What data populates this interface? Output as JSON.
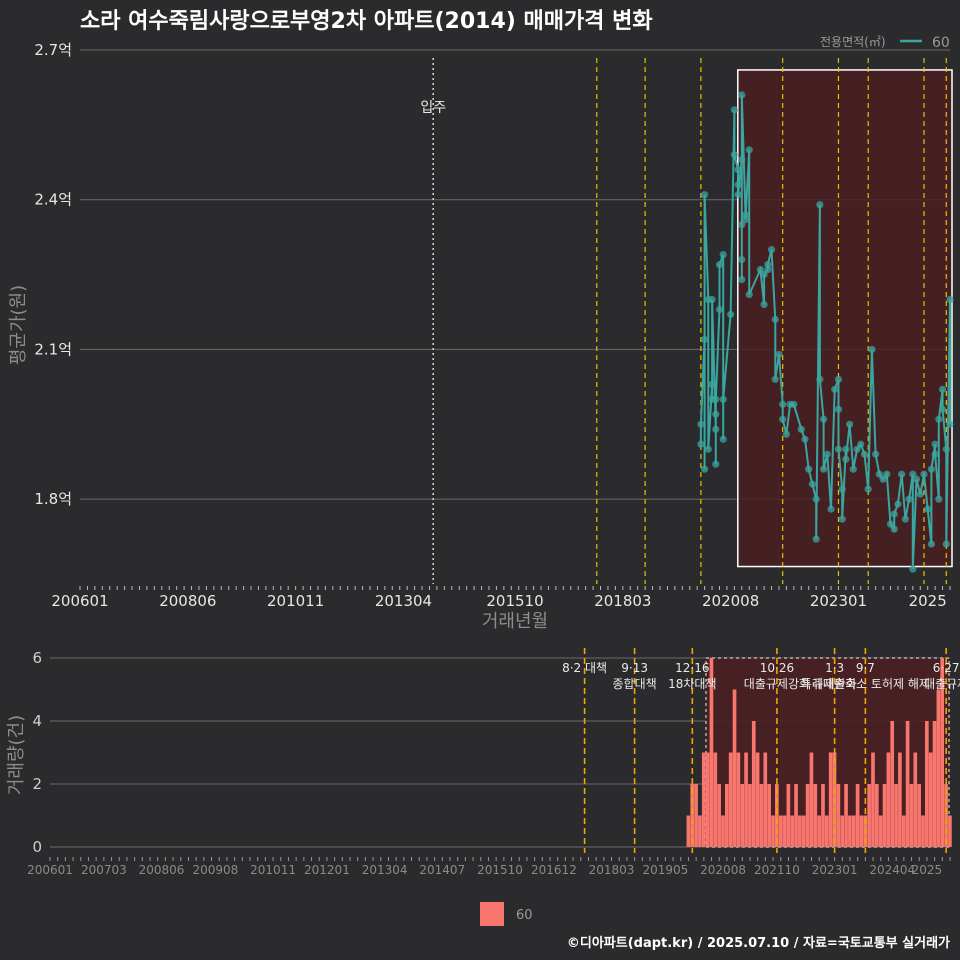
{
  "title": "소라 여수죽림사랑으로부영2차 아파트(2014) 매매가격 변화",
  "footer": "©디아파트(dapt.kr) / 2025.07.10 / 자료=국토교통부 실거래가",
  "colors": {
    "background": "#2b2b2d",
    "line": "#3aa6a0",
    "bar": "#f8766d",
    "highlight_fill": "#4a1f22",
    "policy_line": "#e6c200",
    "grid": "#6b6b6b"
  },
  "chart_data": [
    {
      "type": "line",
      "title": "평균가(원) 추이",
      "xlabel": "거래년월",
      "ylabel": "평균가(원)",
      "ylim": [
        1.63,
        2.72
      ],
      "y_ticks": [
        1.8,
        2.1,
        2.4,
        2.7
      ],
      "y_tick_labels": [
        "1.8억",
        "2.1억",
        "2.4억",
        "2.7억"
      ],
      "x_range": [
        "200601",
        "202507"
      ],
      "x_ticks": [
        "200601",
        "200806",
        "201011",
        "201304",
        "201510",
        "201803",
        "202008",
        "202301",
        "2025"
      ],
      "legend": {
        "title": "전용면적(㎡)",
        "label": "60",
        "position": "top-right"
      },
      "annotation": {
        "label": "입주",
        "x": "201312"
      },
      "policy_lines": [
        "201708",
        "201809",
        "201912",
        "202110",
        "202301",
        "202309",
        "202412",
        "202506"
      ],
      "highlight_range": [
        "202011",
        "202507"
      ],
      "series": [
        {
          "name": "60",
          "points": [
            [
              "201912",
              1.91
            ],
            [
              "201912",
              1.95
            ],
            [
              "202001",
              2.12
            ],
            [
              "202001",
              1.86
            ],
            [
              "202001",
              2.41
            ],
            [
              "202002",
              2.2
            ],
            [
              "202002",
              1.9
            ],
            [
              "202003",
              2.03
            ],
            [
              "202003",
              2.0
            ],
            [
              "202003",
              2.2
            ],
            [
              "202004",
              1.94
            ],
            [
              "202004",
              1.87
            ],
            [
              "202004",
              1.97
            ],
            [
              "202004",
              2.0
            ],
            [
              "202005",
              2.18
            ],
            [
              "202005",
              2.27
            ],
            [
              "202006",
              2.29
            ],
            [
              "202006",
              1.92
            ],
            [
              "202006",
              2.0
            ],
            [
              "202008",
              2.17
            ],
            [
              "202009",
              2.58
            ],
            [
              "202009",
              2.49
            ],
            [
              "202010",
              2.46
            ],
            [
              "202010",
              2.43
            ],
            [
              "202010",
              2.41
            ],
            [
              "202011",
              2.48
            ],
            [
              "202011",
              2.35
            ],
            [
              "202011",
              2.28
            ],
            [
              "202011",
              2.24
            ],
            [
              "202011",
              2.61
            ],
            [
              "202012",
              2.37
            ],
            [
              "202012",
              2.36
            ],
            [
              "202101",
              2.5
            ],
            [
              "202101",
              2.21
            ],
            [
              "202104",
              2.26
            ],
            [
              "202105",
              2.19
            ],
            [
              "202105",
              2.25
            ],
            [
              "202106",
              2.26
            ],
            [
              "202106",
              2.27
            ],
            [
              "202107",
              2.3
            ],
            [
              "202108",
              2.16
            ],
            [
              "202108",
              2.04
            ],
            [
              "202109",
              2.09
            ],
            [
              "202110",
              1.99
            ],
            [
              "202110",
              1.96
            ],
            [
              "202111",
              1.93
            ],
            [
              "202112",
              1.99
            ],
            [
              "202201",
              1.99
            ],
            [
              "202203",
              1.94
            ],
            [
              "202204",
              1.92
            ],
            [
              "202205",
              1.86
            ],
            [
              "202206",
              1.83
            ],
            [
              "202207",
              1.8
            ],
            [
              "202207",
              1.72
            ],
            [
              "202208",
              2.39
            ],
            [
              "202208",
              2.04
            ],
            [
              "202209",
              1.96
            ],
            [
              "202209",
              1.86
            ],
            [
              "202210",
              1.89
            ],
            [
              "202211",
              1.78
            ],
            [
              "202212",
              2.02
            ],
            [
              "202301",
              2.04
            ],
            [
              "202301",
              1.98
            ],
            [
              "202301",
              1.9
            ],
            [
              "202302",
              1.82
            ],
            [
              "202302",
              1.76
            ],
            [
              "202303",
              1.9
            ],
            [
              "202303",
              1.88
            ],
            [
              "202304",
              1.95
            ],
            [
              "202305",
              1.86
            ],
            [
              "202306",
              1.9
            ],
            [
              "202307",
              1.91
            ],
            [
              "202308",
              1.89
            ],
            [
              "202309",
              1.82
            ],
            [
              "202310",
              2.1
            ],
            [
              "202311",
              1.89
            ],
            [
              "202312",
              1.85
            ],
            [
              "202401",
              1.84
            ],
            [
              "202402",
              1.85
            ],
            [
              "202403",
              1.75
            ],
            [
              "202404",
              1.74
            ],
            [
              "202404",
              1.77
            ],
            [
              "202405",
              1.79
            ],
            [
              "202406",
              1.85
            ],
            [
              "202407",
              1.76
            ],
            [
              "202408",
              1.8
            ],
            [
              "202409",
              1.85
            ],
            [
              "202409",
              1.66
            ],
            [
              "202410",
              1.84
            ],
            [
              "202411",
              1.81
            ],
            [
              "202412",
              1.85
            ],
            [
              "202501",
              1.78
            ],
            [
              "202502",
              1.71
            ],
            [
              "202502",
              1.86
            ],
            [
              "202503",
              1.91
            ],
            [
              "202503",
              1.89
            ],
            [
              "202504",
              1.8
            ],
            [
              "202504",
              1.96
            ],
            [
              "202505",
              2.02
            ],
            [
              "202505",
              1.98
            ],
            [
              "202506",
              1.9
            ],
            [
              "202506",
              1.71
            ],
            [
              "202507",
              2.2
            ],
            [
              "202507",
              1.95
            ]
          ]
        }
      ]
    },
    {
      "type": "bar",
      "title": "거래량(건) 추이",
      "xlabel": "",
      "ylabel": "거래량(건)",
      "ylim": [
        0,
        6
      ],
      "y_ticks": [
        0,
        2,
        4,
        6
      ],
      "x_range": [
        "200601",
        "202507"
      ],
      "x_ticks": [
        "200601",
        "200703",
        "200806",
        "200908",
        "201011",
        "201201",
        "201304",
        "201407",
        "201510",
        "201612",
        "201803",
        "201905",
        "202008",
        "202110",
        "202301",
        "202404",
        "2025"
      ],
      "legend": {
        "label": "60",
        "position": "bottom"
      },
      "highlight_range": [
        "202002",
        "202507"
      ],
      "policy_events": [
        {
          "x": "201708",
          "labels": [
            "8·2 대책"
          ]
        },
        {
          "x": "201809",
          "labels": [
            "9·13",
            "종합대책"
          ]
        },
        {
          "x": "201912",
          "labels": [
            "12·16",
            "18차대책"
          ]
        },
        {
          "x": "202110",
          "labels": [
            "10·26",
            "대출규제강화"
          ]
        },
        {
          "x": "202301",
          "labels": [
            "1·3",
            "규제완화"
          ]
        },
        {
          "x": "202309",
          "labels": [
            "9·7",
            "특례대출축소 토허제 해제"
          ]
        },
        {
          "x": "202506",
          "labels": [
            "6·27",
            "대출규제"
          ]
        }
      ],
      "series": [
        {
          "name": "60",
          "points": [
            [
              "201911",
              1
            ],
            [
              "201912",
              2
            ],
            [
              "202001",
              2
            ],
            [
              "202002",
              1
            ],
            [
              "202003",
              3
            ],
            [
              "202004",
              3
            ],
            [
              "202005",
              6
            ],
            [
              "202006",
              3
            ],
            [
              "202007",
              2
            ],
            [
              "202008",
              1
            ],
            [
              "202009",
              2
            ],
            [
              "202010",
              3
            ],
            [
              "202011",
              5
            ],
            [
              "202012",
              3
            ],
            [
              "202101",
              2
            ],
            [
              "202102",
              3
            ],
            [
              "202103",
              2
            ],
            [
              "202104",
              4
            ],
            [
              "202105",
              3
            ],
            [
              "202106",
              2
            ],
            [
              "202107",
              3
            ],
            [
              "202108",
              2
            ],
            [
              "202109",
              1
            ],
            [
              "202110",
              2
            ],
            [
              "202111",
              1
            ],
            [
              "202112",
              1
            ],
            [
              "202201",
              2
            ],
            [
              "202202",
              1
            ],
            [
              "202203",
              2
            ],
            [
              "202204",
              1
            ],
            [
              "202205",
              1
            ],
            [
              "202206",
              2
            ],
            [
              "202207",
              3
            ],
            [
              "202208",
              2
            ],
            [
              "202209",
              1
            ],
            [
              "202210",
              2
            ],
            [
              "202211",
              1
            ],
            [
              "202212",
              3
            ],
            [
              "202301",
              3
            ],
            [
              "202302",
              2
            ],
            [
              "202303",
              1
            ],
            [
              "202304",
              2
            ],
            [
              "202305",
              1
            ],
            [
              "202306",
              1
            ],
            [
              "202307",
              2
            ],
            [
              "202308",
              1
            ],
            [
              "202309",
              1
            ],
            [
              "202310",
              2
            ],
            [
              "202311",
              3
            ],
            [
              "202312",
              2
            ],
            [
              "202401",
              1
            ],
            [
              "202402",
              2
            ],
            [
              "202403",
              3
            ],
            [
              "202404",
              4
            ],
            [
              "202405",
              2
            ],
            [
              "202406",
              3
            ],
            [
              "202407",
              1
            ],
            [
              "202408",
              4
            ],
            [
              "202409",
              2
            ],
            [
              "202410",
              3
            ],
            [
              "202411",
              2
            ],
            [
              "202412",
              1
            ],
            [
              "202501",
              4
            ],
            [
              "202502",
              3
            ],
            [
              "202503",
              4
            ],
            [
              "202504",
              5
            ],
            [
              "202505",
              6
            ],
            [
              "202506",
              2
            ],
            [
              "202507",
              1
            ]
          ]
        }
      ]
    }
  ]
}
